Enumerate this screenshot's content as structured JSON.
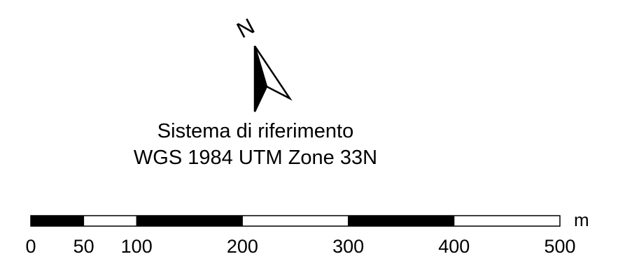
{
  "north_arrow": {
    "label": "N",
    "icon": "north-arrow-icon"
  },
  "reference_system": {
    "line1": "Sistema di riferimento",
    "line2": "WGS 1984 UTM Zone 33N"
  },
  "scale_bar": {
    "unit": "m",
    "min": 0,
    "max": 500,
    "segments": [
      {
        "from": 0,
        "to": 50,
        "fill": "#000000"
      },
      {
        "from": 50,
        "to": 100,
        "fill": "#ffffff"
      },
      {
        "from": 100,
        "to": 200,
        "fill": "#000000"
      },
      {
        "from": 200,
        "to": 300,
        "fill": "#ffffff"
      },
      {
        "from": 300,
        "to": 400,
        "fill": "#000000"
      },
      {
        "from": 400,
        "to": 500,
        "fill": "#ffffff"
      }
    ],
    "tick_labels": [
      {
        "value": 0,
        "text": "0"
      },
      {
        "value": 50,
        "text": "50"
      },
      {
        "value": 100,
        "text": "100"
      },
      {
        "value": 200,
        "text": "200"
      },
      {
        "value": 300,
        "text": "300"
      },
      {
        "value": 400,
        "text": "400"
      },
      {
        "value": 500,
        "text": "500"
      }
    ]
  }
}
